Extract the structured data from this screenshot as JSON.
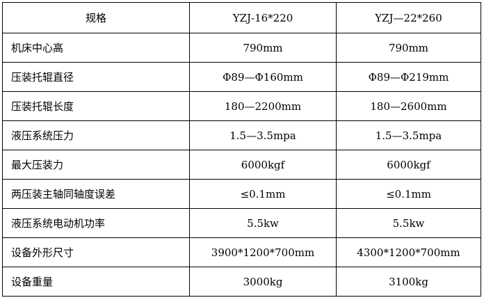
{
  "colors": {
    "border": "#000000",
    "text": "#000000",
    "background": "#ffffff"
  },
  "table": {
    "columns": [
      "规格",
      "YZJ-16*220",
      "YZJ—22*260"
    ],
    "rows": [
      {
        "label": "机床中心高",
        "v1": "790mm",
        "v2": "790mm"
      },
      {
        "label": "压装托辊直径",
        "v1": "Φ89—Φ160mm",
        "v2": "Φ89—Φ219mm"
      },
      {
        "label": "压装托辊长度",
        "v1": "180—2200mm",
        "v2": "180—2600mm"
      },
      {
        "label": "液压系统压力",
        "v1": "1.5—3.5mpa",
        "v2": "1.5—3.5mpa"
      },
      {
        "label": "最大压装力",
        "v1": "6000kgf",
        "v2": "6000kgf"
      },
      {
        "label": "两压装主轴同轴度误差",
        "v1": "≤0.1mm",
        "v2": "≤0.1mm"
      },
      {
        "label": "液压系统电动机功率",
        "v1": "5.5kw",
        "v2": "5.5kw"
      },
      {
        "label": "设备外形尺寸",
        "v1": "3900*1200*700mm",
        "v2": "4300*1200*700mm"
      },
      {
        "label": "设备重量",
        "v1": "3000kg",
        "v2": "3100kg"
      }
    ]
  }
}
